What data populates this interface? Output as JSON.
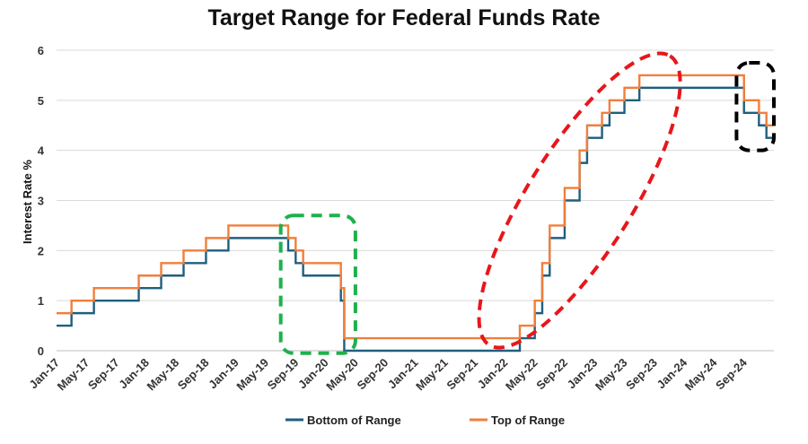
{
  "chart_data": {
    "type": "line",
    "title": "Target Range for Federal Funds Rate",
    "xlabel": "",
    "ylabel": "Interest Rate %",
    "ylim": [
      0,
      6
    ],
    "yticks": [
      0,
      1,
      2,
      3,
      4,
      5,
      6
    ],
    "x_range": [
      "2017-01",
      "2024-12"
    ],
    "x_tick_labels": [
      "Jan-17",
      "May-17",
      "Sep-17",
      "Jan-18",
      "May-18",
      "Sep-18",
      "Jan-19",
      "May-19",
      "Sep-19",
      "Jan-20",
      "May-20",
      "Sep-20",
      "Jan-21",
      "May-21",
      "Sep-21",
      "Jan-22",
      "May-22",
      "Sep-22",
      "Jan-23",
      "May-23",
      "Sep-23",
      "Jan-24",
      "May-24",
      "Sep-24"
    ],
    "grid": "horizontal",
    "legend_position": "bottom",
    "series": [
      {
        "name": "Bottom of Range",
        "color": "#1f5f7f",
        "points": [
          [
            "2017-01",
            0.5
          ],
          [
            "2017-03",
            0.75
          ],
          [
            "2017-06",
            1.0
          ],
          [
            "2017-12",
            1.25
          ],
          [
            "2018-03",
            1.5
          ],
          [
            "2018-06",
            1.75
          ],
          [
            "2018-09",
            2.0
          ],
          [
            "2018-12",
            2.25
          ],
          [
            "2019-08",
            2.0
          ],
          [
            "2019-09",
            1.75
          ],
          [
            "2019-10",
            1.5
          ],
          [
            "2020-03",
            1.0
          ],
          [
            "2020-03b",
            0.0
          ],
          [
            "2022-03",
            0.25
          ],
          [
            "2022-05",
            0.75
          ],
          [
            "2022-06",
            1.5
          ],
          [
            "2022-07",
            2.25
          ],
          [
            "2022-09",
            3.0
          ],
          [
            "2022-11",
            3.75
          ],
          [
            "2022-12",
            4.25
          ],
          [
            "2023-02",
            4.5
          ],
          [
            "2023-03",
            4.75
          ],
          [
            "2023-05",
            5.0
          ],
          [
            "2023-07",
            5.25
          ],
          [
            "2024-09",
            4.75
          ],
          [
            "2024-11",
            4.5
          ],
          [
            "2024-12",
            4.25
          ]
        ]
      },
      {
        "name": "Top of Range",
        "color": "#f07f3c",
        "points": [
          [
            "2017-01",
            0.75
          ],
          [
            "2017-03",
            1.0
          ],
          [
            "2017-06",
            1.25
          ],
          [
            "2017-12",
            1.5
          ],
          [
            "2018-03",
            1.75
          ],
          [
            "2018-06",
            2.0
          ],
          [
            "2018-09",
            2.25
          ],
          [
            "2018-12",
            2.5
          ],
          [
            "2019-08",
            2.25
          ],
          [
            "2019-09",
            2.0
          ],
          [
            "2019-10",
            1.75
          ],
          [
            "2020-03",
            1.25
          ],
          [
            "2020-03b",
            0.25
          ],
          [
            "2022-03",
            0.5
          ],
          [
            "2022-05",
            1.0
          ],
          [
            "2022-06",
            1.75
          ],
          [
            "2022-07",
            2.5
          ],
          [
            "2022-09",
            3.25
          ],
          [
            "2022-11",
            4.0
          ],
          [
            "2022-12",
            4.5
          ],
          [
            "2023-02",
            4.75
          ],
          [
            "2023-03",
            5.0
          ],
          [
            "2023-05",
            5.25
          ],
          [
            "2023-07",
            5.5
          ],
          [
            "2024-09",
            5.0
          ],
          [
            "2024-11",
            4.75
          ],
          [
            "2024-12",
            4.5
          ]
        ]
      }
    ],
    "annotations": [
      {
        "shape": "rounded-rect",
        "style": "dashed",
        "color": "#1fb14c",
        "x_from": "2019-07",
        "x_to": "2020-05",
        "y_from": -0.05,
        "y_to": 2.7
      },
      {
        "shape": "ellipse",
        "style": "dashed",
        "color": "#e8161b",
        "x_from": "2021-12",
        "x_to": "2023-10",
        "y_from": 0.0,
        "y_to": 6.0
      },
      {
        "shape": "rounded-rect",
        "style": "dashed",
        "color": "#000000",
        "x_from": "2024-08",
        "x_to": "2025-01",
        "y_from": 4.0,
        "y_to": 5.75
      }
    ]
  }
}
